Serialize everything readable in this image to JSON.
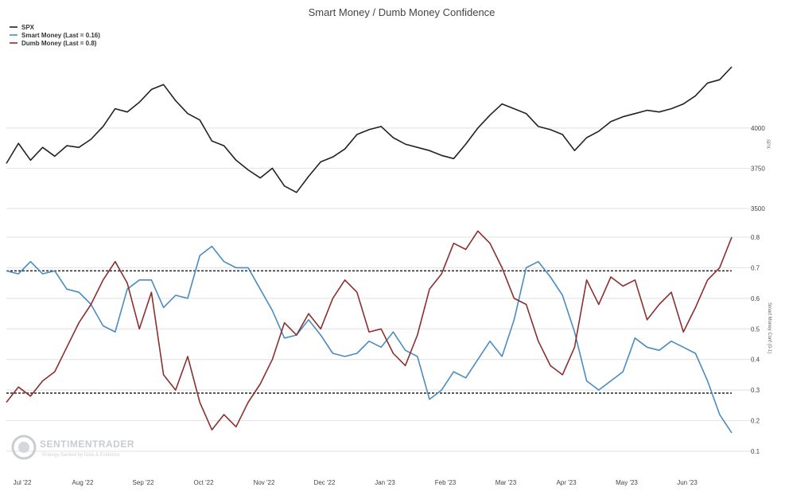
{
  "chart_data": {
    "type": "line",
    "title": "Smart Money / Dumb Money Confidence",
    "x_tick_labels": [
      "Jul '22",
      "Aug '22",
      "Sep '22",
      "Oct '22",
      "Nov '22",
      "Dec '22",
      "Jan '23",
      "Feb '23",
      "Mar '23",
      "Apr '23",
      "May '23",
      "Jun '23"
    ],
    "legend": {
      "placement": "top-left",
      "entries": [
        "SPX",
        "Smart Money (Last = 0.16)",
        "Dumb Money (Last = 0.8)"
      ]
    },
    "panels": [
      {
        "name": "price",
        "y_ticks": [
          "4000",
          "3750",
          "3500"
        ],
        "ylim": [
          3500,
          4400
        ],
        "series": [
          {
            "name": "SPX",
            "color": "#222222",
            "points": [
              [
                0.0,
                3780
              ],
              [
                0.2,
                3905
              ],
              [
                0.4,
                3800
              ],
              [
                0.6,
                3880
              ],
              [
                0.8,
                3825
              ],
              [
                1.0,
                3890
              ],
              [
                1.2,
                3880
              ],
              [
                1.4,
                3930
              ],
              [
                1.6,
                4010
              ],
              [
                1.8,
                4120
              ],
              [
                2.0,
                4100
              ],
              [
                2.2,
                4160
              ],
              [
                2.4,
                4240
              ],
              [
                2.6,
                4270
              ],
              [
                2.8,
                4170
              ],
              [
                3.0,
                4090
              ],
              [
                3.2,
                4050
              ],
              [
                3.4,
                3920
              ],
              [
                3.6,
                3890
              ],
              [
                3.8,
                3800
              ],
              [
                4.0,
                3740
              ],
              [
                4.2,
                3690
              ],
              [
                4.4,
                3750
              ],
              [
                4.6,
                3640
              ],
              [
                4.8,
                3600
              ],
              [
                5.0,
                3700
              ],
              [
                5.2,
                3790
              ],
              [
                5.4,
                3820
              ],
              [
                5.6,
                3870
              ],
              [
                5.8,
                3960
              ],
              [
                6.0,
                3990
              ],
              [
                6.2,
                4010
              ],
              [
                6.4,
                3940
              ],
              [
                6.6,
                3900
              ],
              [
                6.8,
                3880
              ],
              [
                7.0,
                3860
              ],
              [
                7.2,
                3830
              ],
              [
                7.4,
                3810
              ],
              [
                7.6,
                3900
              ],
              [
                7.8,
                4000
              ],
              [
                8.0,
                4080
              ],
              [
                8.2,
                4150
              ],
              [
                8.4,
                4120
              ],
              [
                8.6,
                4090
              ],
              [
                8.8,
                4010
              ],
              [
                9.0,
                3990
              ],
              [
                9.2,
                3960
              ],
              [
                9.4,
                3860
              ],
              [
                9.6,
                3940
              ],
              [
                9.8,
                3980
              ],
              [
                10.0,
                4040
              ],
              [
                10.2,
                4070
              ],
              [
                10.4,
                4090
              ],
              [
                10.6,
                4110
              ],
              [
                10.8,
                4100
              ],
              [
                11.0,
                4120
              ],
              [
                11.2,
                4150
              ],
              [
                11.4,
                4200
              ],
              [
                11.6,
                4280
              ],
              [
                11.8,
                4300
              ],
              [
                12.0,
                4380
              ]
            ]
          }
        ]
      },
      {
        "name": "confidence",
        "y_ticks": [
          "0.8",
          "0.7",
          "0.6",
          "0.5",
          "0.4",
          "0.3",
          "0.2",
          "0.1"
        ],
        "ylim": [
          0.1,
          0.8
        ],
        "reference_lines": [
          0.69,
          0.29
        ],
        "series": [
          {
            "name": "Smart Money (Last = 0.16)",
            "color": "#4a8cc2",
            "points": [
              [
                0.0,
                0.69
              ],
              [
                0.2,
                0.68
              ],
              [
                0.4,
                0.72
              ],
              [
                0.6,
                0.68
              ],
              [
                0.8,
                0.69
              ],
              [
                1.0,
                0.63
              ],
              [
                1.2,
                0.62
              ],
              [
                1.4,
                0.58
              ],
              [
                1.6,
                0.51
              ],
              [
                1.8,
                0.49
              ],
              [
                2.0,
                0.63
              ],
              [
                2.2,
                0.66
              ],
              [
                2.4,
                0.66
              ],
              [
                2.6,
                0.57
              ],
              [
                2.8,
                0.61
              ],
              [
                3.0,
                0.6
              ],
              [
                3.2,
                0.74
              ],
              [
                3.4,
                0.77
              ],
              [
                3.6,
                0.72
              ],
              [
                3.8,
                0.7
              ],
              [
                4.0,
                0.7
              ],
              [
                4.2,
                0.63
              ],
              [
                4.4,
                0.56
              ],
              [
                4.6,
                0.47
              ],
              [
                4.8,
                0.48
              ],
              [
                5.0,
                0.53
              ],
              [
                5.2,
                0.48
              ],
              [
                5.4,
                0.42
              ],
              [
                5.6,
                0.41
              ],
              [
                5.8,
                0.42
              ],
              [
                6.0,
                0.46
              ],
              [
                6.2,
                0.44
              ],
              [
                6.4,
                0.49
              ],
              [
                6.6,
                0.43
              ],
              [
                6.8,
                0.41
              ],
              [
                7.0,
                0.27
              ],
              [
                7.2,
                0.3
              ],
              [
                7.4,
                0.36
              ],
              [
                7.6,
                0.34
              ],
              [
                7.8,
                0.4
              ],
              [
                8.0,
                0.46
              ],
              [
                8.2,
                0.41
              ],
              [
                8.4,
                0.53
              ],
              [
                8.6,
                0.7
              ],
              [
                8.8,
                0.72
              ],
              [
                9.0,
                0.67
              ],
              [
                9.2,
                0.61
              ],
              [
                9.4,
                0.49
              ],
              [
                9.6,
                0.33
              ],
              [
                9.8,
                0.3
              ],
              [
                10.0,
                0.33
              ],
              [
                10.2,
                0.36
              ],
              [
                10.4,
                0.47
              ],
              [
                10.6,
                0.44
              ],
              [
                10.8,
                0.43
              ],
              [
                11.0,
                0.46
              ],
              [
                11.2,
                0.44
              ],
              [
                11.4,
                0.42
              ],
              [
                11.6,
                0.33
              ],
              [
                11.8,
                0.22
              ],
              [
                12.0,
                0.16
              ]
            ]
          },
          {
            "name": "Dumb Money (Last = 0.8)",
            "color": "#8b2f2f",
            "points": [
              [
                0.0,
                0.26
              ],
              [
                0.2,
                0.31
              ],
              [
                0.4,
                0.28
              ],
              [
                0.6,
                0.33
              ],
              [
                0.8,
                0.36
              ],
              [
                1.0,
                0.44
              ],
              [
                1.2,
                0.52
              ],
              [
                1.4,
                0.58
              ],
              [
                1.6,
                0.66
              ],
              [
                1.8,
                0.72
              ],
              [
                2.0,
                0.65
              ],
              [
                2.2,
                0.5
              ],
              [
                2.4,
                0.62
              ],
              [
                2.6,
                0.35
              ],
              [
                2.8,
                0.3
              ],
              [
                3.0,
                0.41
              ],
              [
                3.2,
                0.26
              ],
              [
                3.4,
                0.17
              ],
              [
                3.6,
                0.22
              ],
              [
                3.8,
                0.18
              ],
              [
                4.0,
                0.26
              ],
              [
                4.2,
                0.32
              ],
              [
                4.4,
                0.4
              ],
              [
                4.6,
                0.52
              ],
              [
                4.8,
                0.48
              ],
              [
                5.0,
                0.55
              ],
              [
                5.2,
                0.5
              ],
              [
                5.4,
                0.6
              ],
              [
                5.6,
                0.66
              ],
              [
                5.8,
                0.62
              ],
              [
                6.0,
                0.49
              ],
              [
                6.2,
                0.5
              ],
              [
                6.4,
                0.42
              ],
              [
                6.6,
                0.38
              ],
              [
                6.8,
                0.48
              ],
              [
                7.0,
                0.63
              ],
              [
                7.2,
                0.68
              ],
              [
                7.4,
                0.78
              ],
              [
                7.6,
                0.76
              ],
              [
                7.8,
                0.82
              ],
              [
                8.0,
                0.78
              ],
              [
                8.2,
                0.7
              ],
              [
                8.4,
                0.6
              ],
              [
                8.6,
                0.58
              ],
              [
                8.8,
                0.46
              ],
              [
                9.0,
                0.38
              ],
              [
                9.2,
                0.35
              ],
              [
                9.4,
                0.44
              ],
              [
                9.6,
                0.66
              ],
              [
                9.8,
                0.58
              ],
              [
                10.0,
                0.67
              ],
              [
                10.2,
                0.64
              ],
              [
                10.4,
                0.66
              ],
              [
                10.6,
                0.53
              ],
              [
                10.8,
                0.58
              ],
              [
                11.0,
                0.62
              ],
              [
                11.2,
                0.49
              ],
              [
                11.4,
                0.57
              ],
              [
                11.6,
                0.66
              ],
              [
                11.8,
                0.7
              ],
              [
                12.0,
                0.8
              ]
            ]
          }
        ]
      }
    ],
    "right_axis_labels": [
      "SPX",
      "Smart Money Conf (0-1)"
    ],
    "watermark": {
      "name": "SENTIMENTRADER",
      "tagline": "Strategy Backed by Data & Evidence"
    }
  }
}
